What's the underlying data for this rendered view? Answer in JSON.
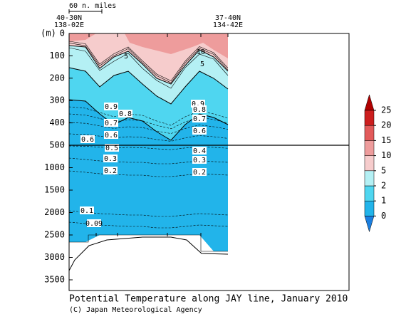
{
  "chart_data": {
    "type": "contour",
    "title": "Potential Temperature along JAY line, January 2010",
    "credit": "(C) Japan Meteorological Agency",
    "y_label": "(m)",
    "scale_label": "60 n. miles",
    "station_left": [
      "40-30N",
      "138-02E"
    ],
    "station_right": [
      "37-40N",
      "134-42E"
    ],
    "yticks": [
      0,
      100,
      200,
      300,
      400,
      500,
      1000,
      1500,
      2000,
      2500,
      3000,
      3500
    ],
    "ylim": [
      0,
      3500
    ],
    "contour_labels": [
      10,
      5,
      5,
      0.9,
      0.8,
      0.7,
      0.6,
      0.6,
      0.5,
      0.3,
      0.2,
      0.9,
      0.8,
      0.7,
      0.6,
      0.4,
      0.3,
      0.2,
      0.1,
      0.09
    ],
    "colorbar": {
      "levels": [
        0,
        1,
        2,
        5,
        10,
        15,
        20,
        25
      ],
      "colors": [
        "#1a7fe0",
        "#22b4ea",
        "#4fd6f0",
        "#b4f0f4",
        "#f6cccc",
        "#ee9c9c",
        "#e25a5a",
        "#cc1e1e",
        "#b00000"
      ]
    }
  }
}
